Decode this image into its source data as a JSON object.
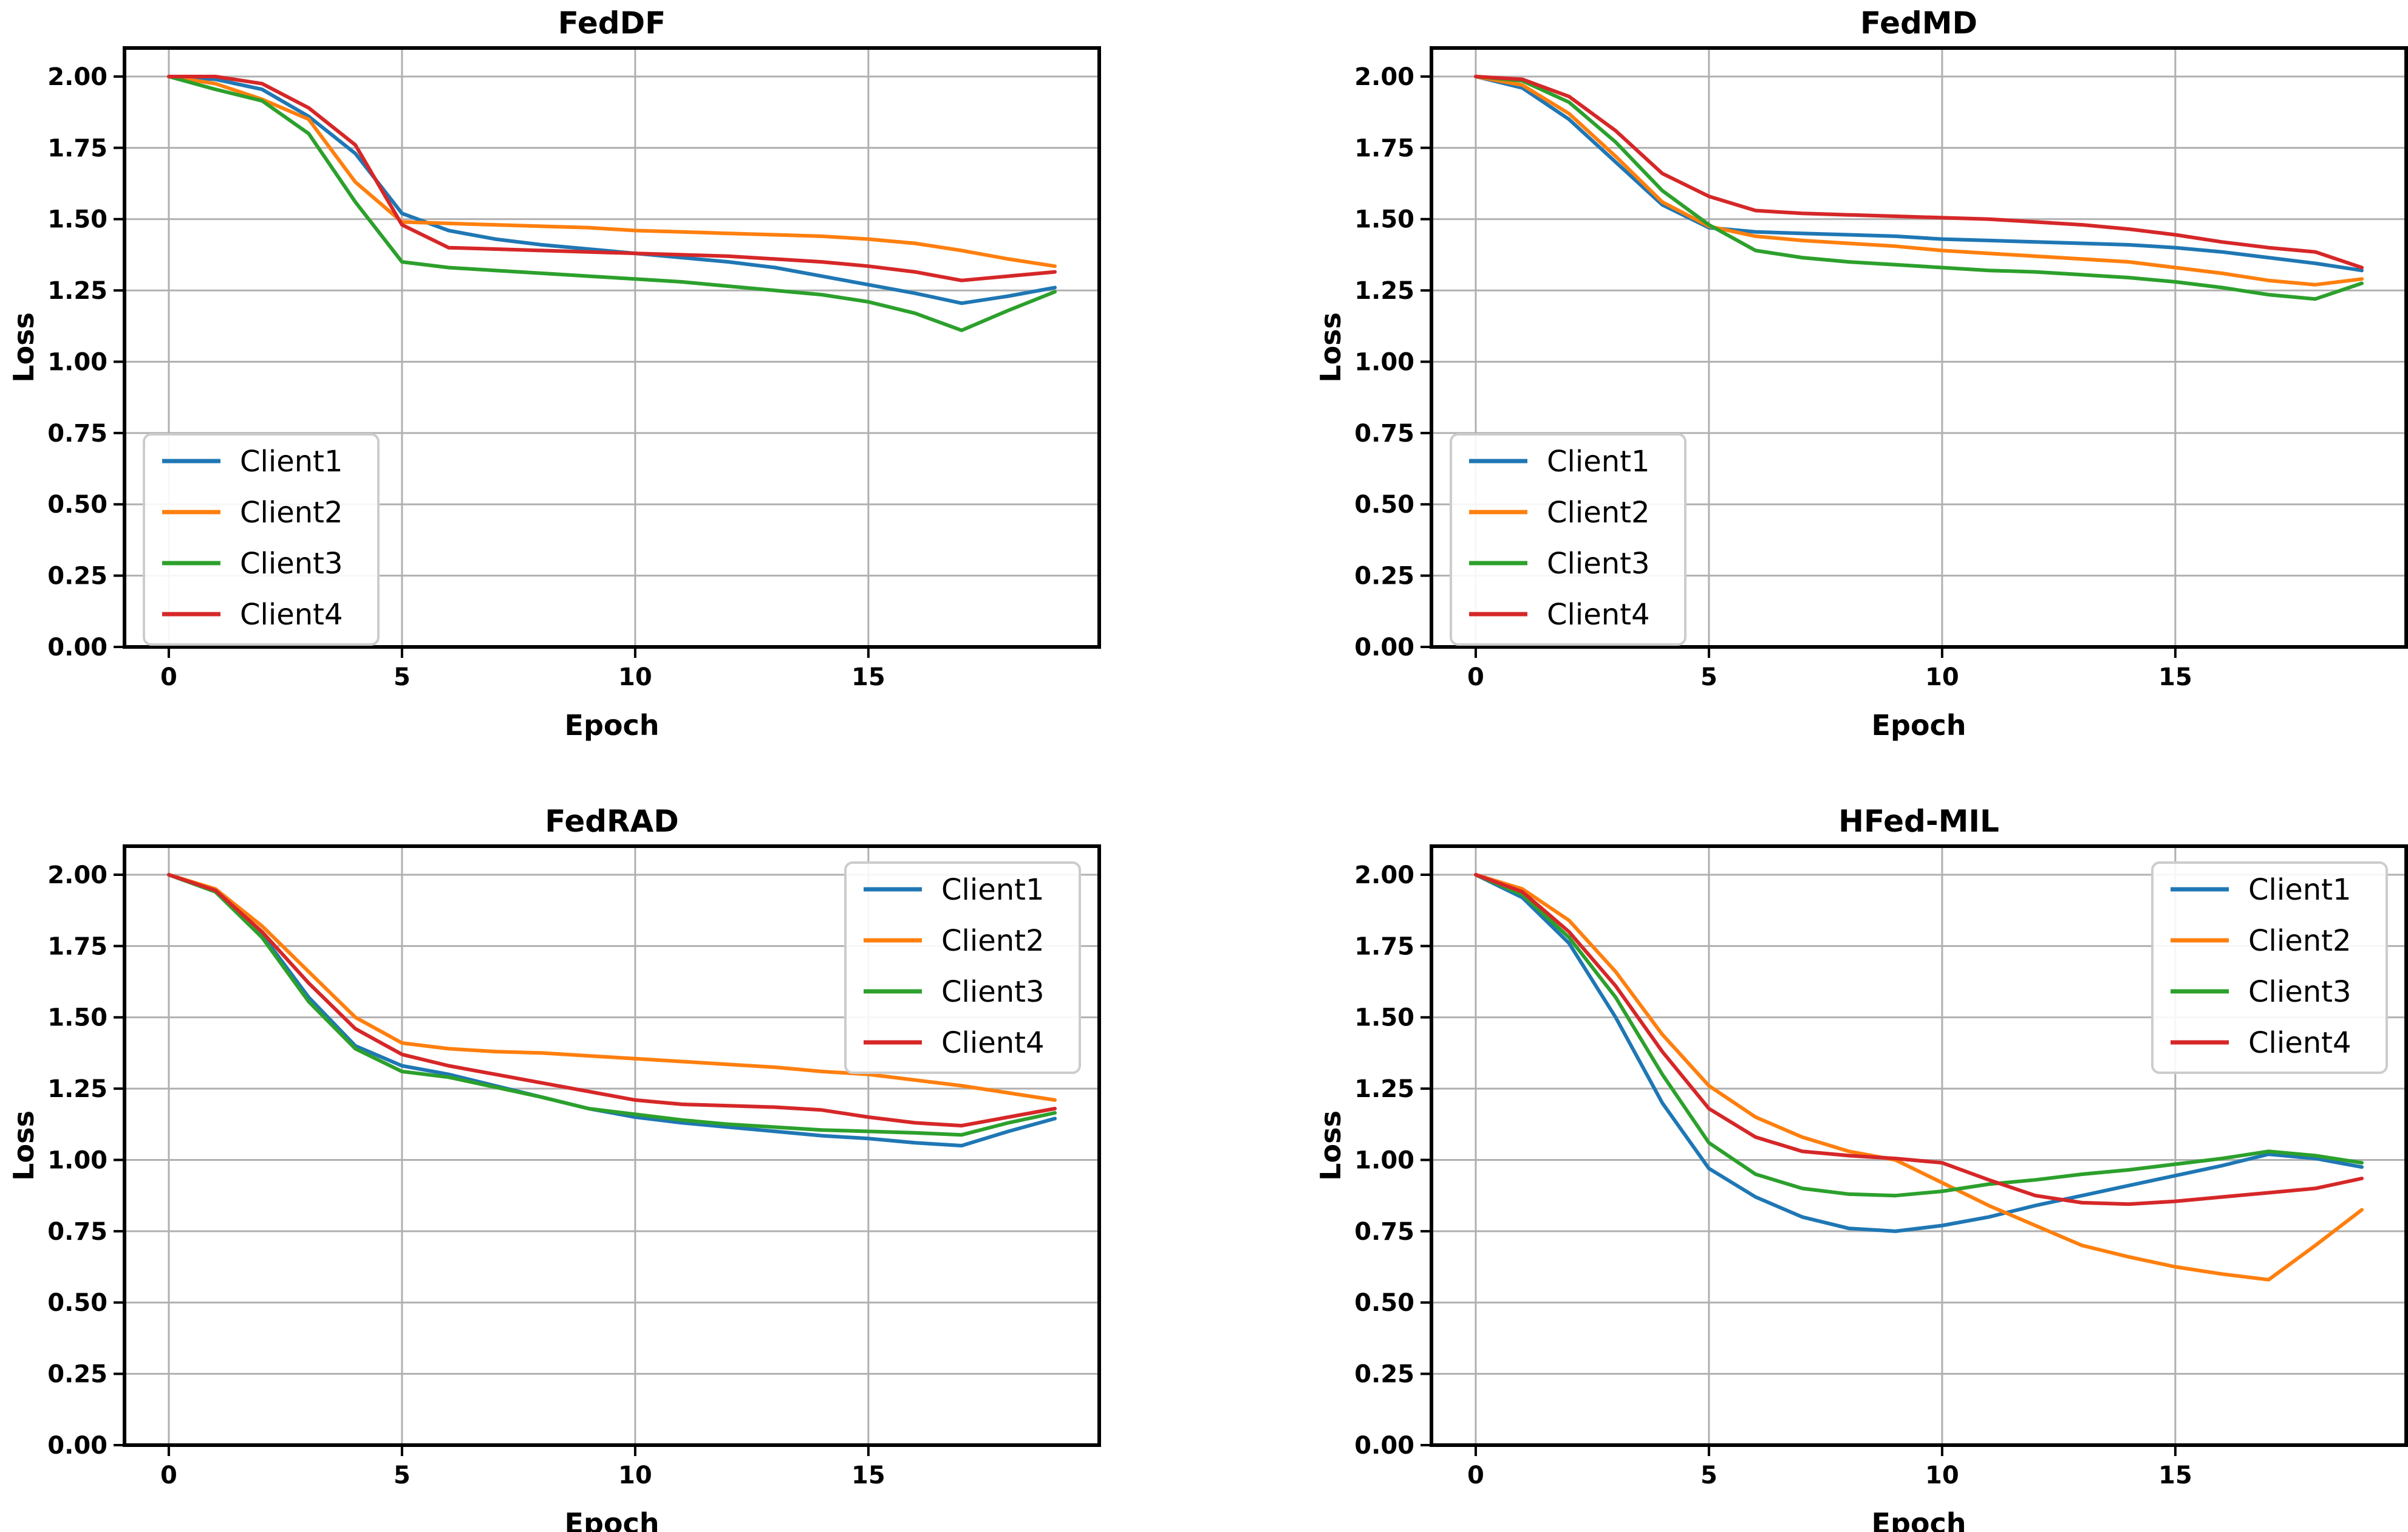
{
  "figure": {
    "background": "#ffffff",
    "grid_color": "#b0b0b0",
    "spine_color": "#000000",
    "legend_edge_color": "#cccccc",
    "legend_face_color": "#ffffff"
  },
  "chart_data": [
    {
      "id": "feddf",
      "type": "line",
      "title": "FedDF",
      "xlabel": "Epoch",
      "ylabel": "Loss",
      "xlim": [
        -0.95,
        19.95
      ],
      "ylim": [
        0,
        2.1
      ],
      "xticks": [
        0,
        5,
        10,
        15
      ],
      "xtick_labels": [
        "0",
        "5",
        "10",
        "15"
      ],
      "yticks": [
        0,
        0.25,
        0.5,
        0.75,
        1.0,
        1.25,
        1.5,
        1.75,
        2.0
      ],
      "ytick_labels": [
        "0.00",
        "0.25",
        "0.50",
        "0.75",
        "1.00",
        "1.25",
        "1.50",
        "1.75",
        "2.00"
      ],
      "grid": true,
      "legend_position": "lower-left",
      "x": [
        0,
        1,
        2,
        3,
        4,
        5,
        6,
        7,
        8,
        9,
        10,
        11,
        12,
        13,
        14,
        15,
        16,
        17,
        18,
        19
      ],
      "series": [
        {
          "name": "Client1",
          "color": "#1f77b4",
          "values": [
            2.0,
            1.99,
            1.955,
            1.86,
            1.73,
            1.52,
            1.46,
            1.43,
            1.41,
            1.395,
            1.38,
            1.365,
            1.35,
            1.33,
            1.3,
            1.27,
            1.24,
            1.205,
            1.23,
            1.26
          ]
        },
        {
          "name": "Client2",
          "color": "#ff7f0e",
          "values": [
            2.0,
            1.975,
            1.92,
            1.85,
            1.63,
            1.49,
            1.485,
            1.48,
            1.475,
            1.47,
            1.46,
            1.455,
            1.45,
            1.445,
            1.44,
            1.43,
            1.415,
            1.39,
            1.36,
            1.335
          ]
        },
        {
          "name": "Client3",
          "color": "#2ca02c",
          "values": [
            2.0,
            1.955,
            1.915,
            1.8,
            1.56,
            1.35,
            1.33,
            1.32,
            1.31,
            1.3,
            1.29,
            1.28,
            1.265,
            1.25,
            1.235,
            1.21,
            1.17,
            1.11,
            1.18,
            1.245
          ]
        },
        {
          "name": "Client4",
          "color": "#d62728",
          "values": [
            2.0,
            2.0,
            1.975,
            1.89,
            1.76,
            1.48,
            1.4,
            1.395,
            1.39,
            1.385,
            1.38,
            1.375,
            1.37,
            1.36,
            1.35,
            1.335,
            1.315,
            1.285,
            1.3,
            1.315
          ]
        }
      ]
    },
    {
      "id": "fedmd",
      "type": "line",
      "title": "FedMD",
      "xlabel": "Epoch",
      "ylabel": "Loss",
      "xlim": [
        -0.95,
        19.95
      ],
      "ylim": [
        0,
        2.1
      ],
      "xticks": [
        0,
        5,
        10,
        15
      ],
      "xtick_labels": [
        "0",
        "5",
        "10",
        "15"
      ],
      "yticks": [
        0,
        0.25,
        0.5,
        0.75,
        1.0,
        1.25,
        1.5,
        1.75,
        2.0
      ],
      "ytick_labels": [
        "0.00",
        "0.25",
        "0.50",
        "0.75",
        "1.00",
        "1.25",
        "1.50",
        "1.75",
        "2.00"
      ],
      "grid": true,
      "legend_position": "lower-left",
      "x": [
        0,
        1,
        2,
        3,
        4,
        5,
        6,
        7,
        8,
        9,
        10,
        11,
        12,
        13,
        14,
        15,
        16,
        17,
        18,
        19
      ],
      "series": [
        {
          "name": "Client1",
          "color": "#1f77b4",
          "values": [
            2.0,
            1.96,
            1.85,
            1.7,
            1.55,
            1.47,
            1.455,
            1.45,
            1.445,
            1.44,
            1.43,
            1.425,
            1.42,
            1.415,
            1.41,
            1.4,
            1.385,
            1.365,
            1.345,
            1.32
          ]
        },
        {
          "name": "Client2",
          "color": "#ff7f0e",
          "values": [
            2.0,
            1.97,
            1.87,
            1.72,
            1.56,
            1.475,
            1.44,
            1.425,
            1.415,
            1.405,
            1.39,
            1.38,
            1.37,
            1.36,
            1.35,
            1.33,
            1.31,
            1.285,
            1.27,
            1.29
          ]
        },
        {
          "name": "Client3",
          "color": "#2ca02c",
          "values": [
            2.0,
            1.985,
            1.91,
            1.77,
            1.6,
            1.48,
            1.39,
            1.365,
            1.35,
            1.34,
            1.33,
            1.32,
            1.315,
            1.305,
            1.295,
            1.28,
            1.26,
            1.235,
            1.22,
            1.275
          ]
        },
        {
          "name": "Client4",
          "color": "#d62728",
          "values": [
            2.0,
            1.99,
            1.93,
            1.81,
            1.66,
            1.58,
            1.53,
            1.52,
            1.515,
            1.51,
            1.505,
            1.5,
            1.49,
            1.48,
            1.465,
            1.445,
            1.42,
            1.4,
            1.385,
            1.33
          ]
        }
      ]
    },
    {
      "id": "fedrad",
      "type": "line",
      "title": "FedRAD",
      "xlabel": "Epoch",
      "ylabel": "Loss",
      "xlim": [
        -0.95,
        19.95
      ],
      "ylim": [
        0,
        2.1
      ],
      "xticks": [
        0,
        5,
        10,
        15
      ],
      "xtick_labels": [
        "0",
        "5",
        "10",
        "15"
      ],
      "yticks": [
        0,
        0.25,
        0.5,
        0.75,
        1.0,
        1.25,
        1.5,
        1.75,
        2.0
      ],
      "ytick_labels": [
        "0.00",
        "0.25",
        "0.50",
        "0.75",
        "1.00",
        "1.25",
        "1.50",
        "1.75",
        "2.00"
      ],
      "grid": true,
      "legend_position": "upper-right",
      "x": [
        0,
        1,
        2,
        3,
        4,
        5,
        6,
        7,
        8,
        9,
        10,
        11,
        12,
        13,
        14,
        15,
        16,
        17,
        18,
        19
      ],
      "series": [
        {
          "name": "Client1",
          "color": "#1f77b4",
          "values": [
            2.0,
            1.94,
            1.79,
            1.57,
            1.4,
            1.33,
            1.3,
            1.26,
            1.22,
            1.18,
            1.15,
            1.13,
            1.115,
            1.1,
            1.085,
            1.075,
            1.06,
            1.05,
            1.1,
            1.145
          ]
        },
        {
          "name": "Client2",
          "color": "#ff7f0e",
          "values": [
            2.0,
            1.95,
            1.82,
            1.66,
            1.5,
            1.41,
            1.39,
            1.38,
            1.375,
            1.365,
            1.355,
            1.345,
            1.335,
            1.325,
            1.31,
            1.3,
            1.28,
            1.26,
            1.235,
            1.21
          ]
        },
        {
          "name": "Client3",
          "color": "#2ca02c",
          "values": [
            2.0,
            1.94,
            1.78,
            1.555,
            1.39,
            1.31,
            1.29,
            1.255,
            1.22,
            1.18,
            1.16,
            1.14,
            1.125,
            1.115,
            1.105,
            1.1,
            1.095,
            1.088,
            1.13,
            1.165
          ]
        },
        {
          "name": "Client4",
          "color": "#d62728",
          "values": [
            2.0,
            1.945,
            1.8,
            1.62,
            1.46,
            1.37,
            1.33,
            1.3,
            1.27,
            1.24,
            1.21,
            1.195,
            1.19,
            1.185,
            1.175,
            1.15,
            1.13,
            1.12,
            1.15,
            1.18
          ]
        }
      ]
    },
    {
      "id": "hfed-mil",
      "type": "line",
      "title": "HFed-MIL",
      "xlabel": "Epoch",
      "ylabel": "Loss",
      "xlim": [
        -0.95,
        19.95
      ],
      "ylim": [
        0,
        2.1
      ],
      "xticks": [
        0,
        5,
        10,
        15
      ],
      "xtick_labels": [
        "0",
        "5",
        "10",
        "15"
      ],
      "yticks": [
        0,
        0.25,
        0.5,
        0.75,
        1.0,
        1.25,
        1.5,
        1.75,
        2.0
      ],
      "ytick_labels": [
        "0.00",
        "0.25",
        "0.50",
        "0.75",
        "1.00",
        "1.25",
        "1.50",
        "1.75",
        "2.00"
      ],
      "grid": true,
      "legend_position": "upper-right",
      "x": [
        0,
        1,
        2,
        3,
        4,
        5,
        6,
        7,
        8,
        9,
        10,
        11,
        12,
        13,
        14,
        15,
        16,
        17,
        18,
        19
      ],
      "series": [
        {
          "name": "Client1",
          "color": "#1f77b4",
          "values": [
            2.0,
            1.92,
            1.76,
            1.5,
            1.2,
            0.97,
            0.87,
            0.8,
            0.76,
            0.75,
            0.77,
            0.8,
            0.84,
            0.875,
            0.91,
            0.945,
            0.98,
            1.02,
            1.005,
            0.975
          ]
        },
        {
          "name": "Client2",
          "color": "#ff7f0e",
          "values": [
            2.0,
            1.95,
            1.84,
            1.66,
            1.44,
            1.26,
            1.15,
            1.08,
            1.03,
            1.0,
            0.92,
            0.84,
            0.77,
            0.7,
            0.66,
            0.625,
            0.6,
            0.58,
            0.7,
            0.825
          ]
        },
        {
          "name": "Client3",
          "color": "#2ca02c",
          "values": [
            2.0,
            1.93,
            1.78,
            1.57,
            1.3,
            1.06,
            0.95,
            0.9,
            0.88,
            0.875,
            0.89,
            0.915,
            0.93,
            0.95,
            0.965,
            0.985,
            1.005,
            1.03,
            1.015,
            0.99
          ]
        },
        {
          "name": "Client4",
          "color": "#d62728",
          "values": [
            2.0,
            1.94,
            1.8,
            1.61,
            1.38,
            1.18,
            1.08,
            1.03,
            1.015,
            1.005,
            0.99,
            0.93,
            0.875,
            0.85,
            0.845,
            0.855,
            0.87,
            0.885,
            0.9,
            0.935
          ]
        }
      ]
    }
  ]
}
